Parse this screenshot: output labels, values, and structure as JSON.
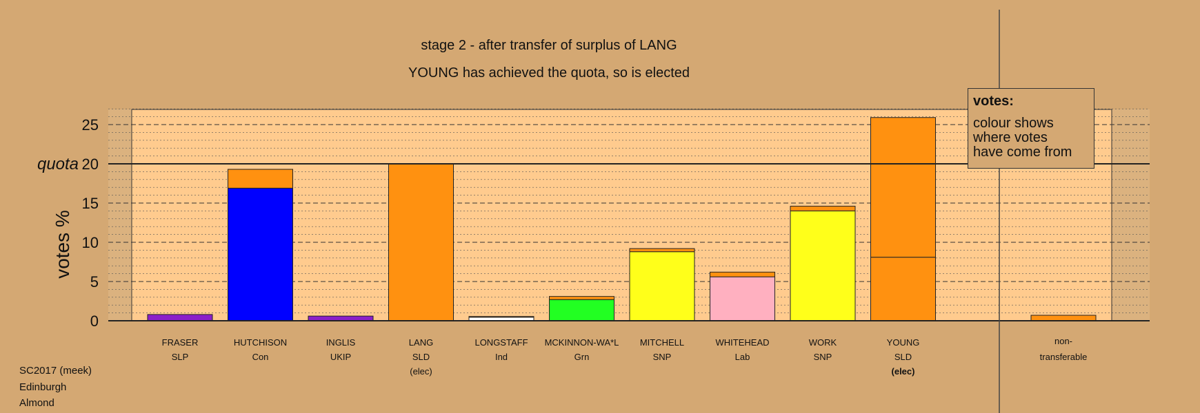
{
  "chart_data": {
    "type": "bar",
    "title": "stage 2 - after transfer of surplus of LANG",
    "subtitle": "YOUNG has achieved the quota, so is elected",
    "ylabel": "votes %",
    "quota_label": "quota",
    "quota": 20,
    "ylim": [
      0,
      27
    ],
    "yticks": [
      0,
      5,
      10,
      15,
      20,
      25
    ],
    "candidates": [
      {
        "name": "FRASER",
        "party": "SLP",
        "note": "",
        "segments": [
          {
            "value": 0.8,
            "color": "#8b1fc9"
          }
        ]
      },
      {
        "name": "HUTCHISON",
        "party": "Con",
        "note": "",
        "segments": [
          {
            "value": 16.9,
            "color": "#0000ff"
          },
          {
            "value": 2.4,
            "color": "#ff9110"
          }
        ]
      },
      {
        "name": "INGLIS",
        "party": "UKIP",
        "note": "",
        "segments": [
          {
            "value": 0.6,
            "color": "#8b1fc9"
          }
        ]
      },
      {
        "name": "LANG",
        "party": "SLD",
        "note": "(elec)",
        "segments": [
          {
            "value": 20.0,
            "color": "#ff9110"
          }
        ]
      },
      {
        "name": "LONGSTAFF",
        "party": "Ind",
        "note": "",
        "segments": [
          {
            "value": 0.45,
            "color": "#ffffff"
          },
          {
            "value": 0.1,
            "color": "#ff9110"
          }
        ]
      },
      {
        "name": "MCKINNON-WA*L",
        "party": "Grn",
        "note": "",
        "segments": [
          {
            "value": 2.7,
            "color": "#22ff22"
          },
          {
            "value": 0.4,
            "color": "#ff9110"
          }
        ]
      },
      {
        "name": "MITCHELL",
        "party": "SNP",
        "note": "",
        "segments": [
          {
            "value": 8.8,
            "color": "#ffff1a"
          },
          {
            "value": 0.4,
            "color": "#ff9110"
          }
        ]
      },
      {
        "name": "WHITEHEAD",
        "party": "Lab",
        "note": "",
        "segments": [
          {
            "value": 5.6,
            "color": "#ffb0c0"
          },
          {
            "value": 0.6,
            "color": "#ff9110"
          }
        ]
      },
      {
        "name": "WORK",
        "party": "SNP",
        "note": "",
        "segments": [
          {
            "value": 14.0,
            "color": "#ffff1a"
          },
          {
            "value": 0.6,
            "color": "#ff9110"
          }
        ]
      },
      {
        "name": "YOUNG",
        "party": "SLD",
        "note": "(elec)",
        "bold_note": true,
        "segments": [
          {
            "value": 8.1,
            "color": "#ff9110"
          },
          {
            "value": 17.8,
            "color": "#ff9110"
          }
        ]
      }
    ],
    "nontransferable": {
      "name": "non-",
      "party": "transferable",
      "value": 0.7,
      "color": "#ff9110"
    },
    "legend": {
      "title": "votes:",
      "lines": [
        "colour shows",
        "where votes",
        "have come from"
      ]
    }
  },
  "footer": {
    "line1": "SC2017 (meek)",
    "line2": "Edinburgh",
    "line3": "Almond"
  },
  "colors": {
    "background": "#d4a873",
    "plot_area": "#ffcb8e",
    "plot_side": "#dbb27f"
  }
}
